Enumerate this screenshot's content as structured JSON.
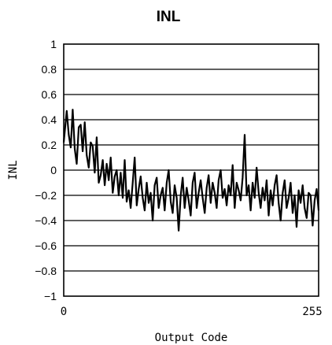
{
  "chart_data": {
    "type": "line",
    "title": "INL",
    "xlabel": "Output Code",
    "ylabel": "INL",
    "xlim": [
      0,
      255
    ],
    "ylim": [
      -1,
      1
    ],
    "x_ticks": [
      "0",
      "255"
    ],
    "y_ticks": [
      "1",
      "0.8",
      "0.6",
      "0.4",
      "0.2",
      "0",
      "-0.2",
      "-0.4",
      "-0.6",
      "-0.8",
      "-1"
    ],
    "grid": "horizontal",
    "series": [
      {
        "x": [
          0,
          3,
          5,
          7,
          9,
          11,
          13,
          15,
          17,
          19,
          21,
          23,
          25,
          27,
          29,
          31,
          33,
          35,
          37,
          39,
          41,
          43,
          45,
          47,
          49,
          51,
          53,
          55,
          57,
          59,
          61,
          63,
          65,
          67,
          69,
          71,
          73,
          75,
          77,
          79,
          81,
          83,
          85,
          87,
          89,
          91,
          93,
          95,
          97,
          99,
          101,
          103,
          105,
          107,
          109,
          111,
          113,
          115,
          117,
          119,
          121,
          123,
          125,
          127,
          129,
          131,
          133,
          135,
          137,
          139,
          141,
          143,
          145,
          147,
          149,
          151,
          153,
          155,
          157,
          159,
          161,
          163,
          165,
          167,
          169,
          171,
          173,
          175,
          177,
          179,
          181,
          183,
          185,
          187,
          189,
          191,
          193,
          195,
          197,
          199,
          201,
          203,
          205,
          207,
          209,
          211,
          213,
          215,
          217,
          219,
          221,
          223,
          225,
          227,
          229,
          231,
          233,
          235,
          237,
          239,
          241,
          243,
          245,
          247,
          249,
          251,
          253,
          255
        ],
        "values": [
          0.22,
          0.47,
          0.28,
          0.18,
          0.48,
          0.17,
          0.05,
          0.34,
          0.36,
          0.15,
          0.38,
          0.12,
          0.02,
          0.22,
          0.19,
          -0.02,
          0.26,
          -0.1,
          -0.04,
          0.08,
          -0.12,
          0.05,
          -0.08,
          0.1,
          -0.18,
          -0.05,
          0.0,
          -0.2,
          -0.02,
          -0.22,
          0.08,
          -0.25,
          -0.16,
          -0.3,
          -0.1,
          0.1,
          -0.28,
          -0.15,
          -0.05,
          -0.22,
          -0.32,
          -0.1,
          -0.26,
          -0.18,
          -0.4,
          -0.12,
          -0.06,
          -0.3,
          -0.2,
          -0.14,
          -0.32,
          -0.1,
          0.0,
          -0.25,
          -0.34,
          -0.12,
          -0.22,
          -0.48,
          -0.2,
          -0.06,
          -0.3,
          -0.14,
          -0.24,
          -0.36,
          -0.1,
          -0.02,
          -0.3,
          -0.18,
          -0.08,
          -0.22,
          -0.34,
          -0.14,
          -0.04,
          -0.26,
          -0.1,
          -0.18,
          -0.3,
          -0.08,
          0.0,
          -0.22,
          -0.15,
          -0.28,
          -0.12,
          -0.2,
          0.04,
          -0.3,
          -0.1,
          -0.16,
          -0.24,
          -0.06,
          0.28,
          -0.2,
          -0.12,
          -0.32,
          -0.1,
          -0.22,
          0.02,
          -0.18,
          -0.3,
          -0.14,
          -0.24,
          -0.08,
          -0.36,
          -0.16,
          -0.28,
          -0.12,
          -0.04,
          -0.26,
          -0.4,
          -0.18,
          -0.08,
          -0.3,
          -0.22,
          -0.1,
          -0.34,
          -0.2,
          -0.45,
          -0.16,
          -0.26,
          -0.12,
          -0.3,
          -0.38,
          -0.18,
          -0.2,
          -0.44,
          -0.24,
          -0.15,
          -0.32
        ]
      }
    ]
  }
}
